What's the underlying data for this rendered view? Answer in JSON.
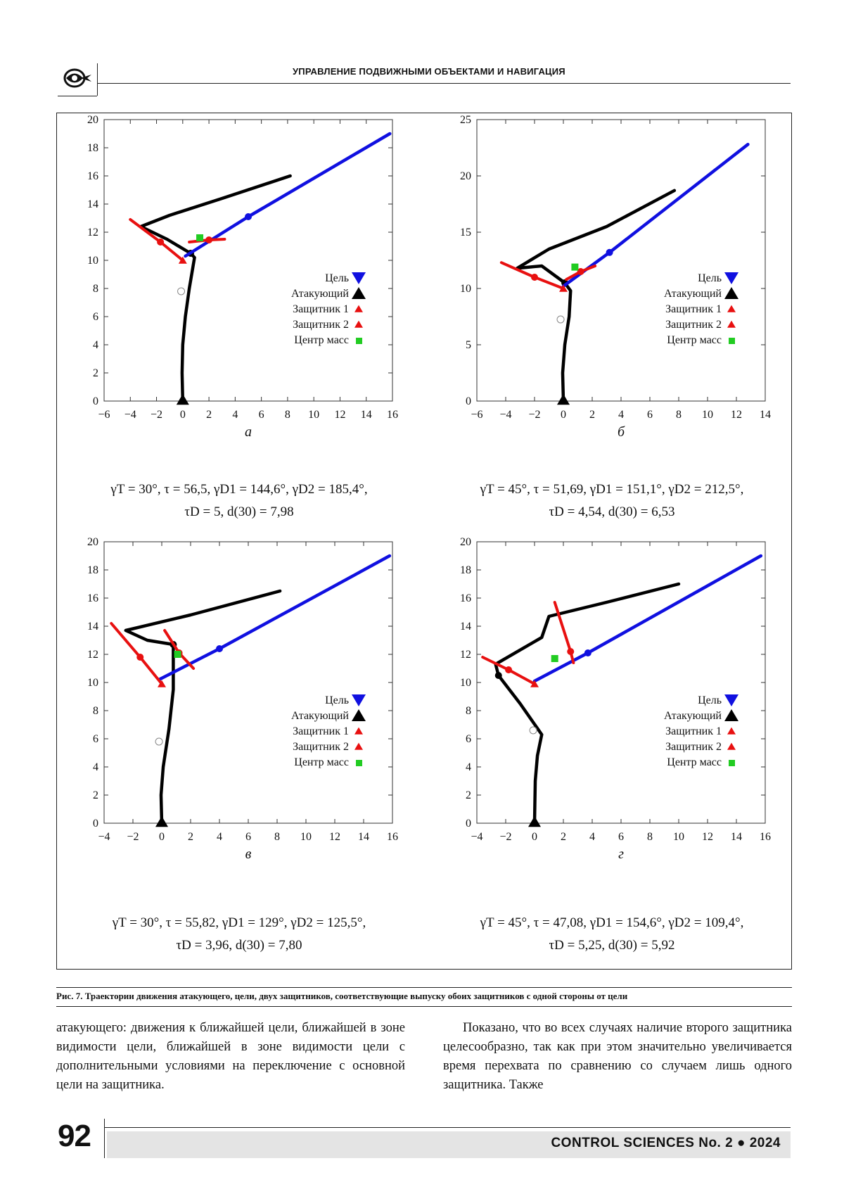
{
  "header": {
    "title": "УПРАВЛЕНИЕ ПОДВИЖНЫМИ ОБЪЕКТАМИ И НАВИГАЦИЯ"
  },
  "legend": {
    "target": "Цель",
    "attacker": "Атакующий",
    "defender1": "Защитник 1",
    "defender2": "Защитник 2",
    "center": "Центр масс"
  },
  "colors": {
    "target": "#1010e0",
    "attacker": "#000000",
    "defender": "#e81010",
    "center": "#22cc22"
  },
  "panels": [
    {
      "letter": "а",
      "params_line1": "γT = 30°,  τ = 56,5,  γD1 = 144,6°,  γD2 = 185,4°,",
      "params_line2": "τD = 5,  d(30) = 7,98"
    },
    {
      "letter": "б",
      "params_line1": "γT = 45°,  τ = 51,69,  γD1 = 151,1°,  γD2 = 212,5°,",
      "params_line2": "τD = 4,54,  d(30) = 6,53"
    },
    {
      "letter": "в",
      "params_line1": "γT = 30°,  τ = 55,82,  γD1 = 129°,  γD2 = 125,5°,",
      "params_line2": "τD = 3,96,  d(30) = 7,80"
    },
    {
      "letter": "г",
      "params_line1": "γT = 45°,  τ = 47,08,  γD1 = 154,6°,  γD2 = 109,4°,",
      "params_line2": "τD = 5,25,  d(30) = 5,92"
    }
  ],
  "chart_data": [
    {
      "type": "line",
      "xlim": [
        -6,
        16
      ],
      "ylim": [
        0,
        20
      ],
      "xticks": [
        -6,
        -4,
        -2,
        0,
        2,
        4,
        6,
        8,
        10,
        12,
        14,
        16
      ],
      "yticks": [
        0,
        2,
        4,
        6,
        8,
        10,
        12,
        14,
        16,
        18,
        20
      ],
      "legend_position": "lower-right",
      "series": [
        {
          "name": "Атакующий",
          "color": "#000000",
          "points": [
            [
              0,
              0
            ],
            [
              -0.05,
              2
            ],
            [
              0,
              4
            ],
            [
              0.2,
              6
            ],
            [
              0.5,
              8
            ],
            [
              0.9,
              10.2
            ],
            [
              0.6,
              10.5
            ],
            [
              -1.2,
              11.5
            ],
            [
              -3.2,
              12.4
            ],
            [
              -1,
              13.2
            ],
            [
              3,
              14.4
            ],
            [
              8.2,
              16
            ]
          ]
        },
        {
          "name": "Цель",
          "color": "#1010e0",
          "points": [
            [
              0.2,
              10.3
            ],
            [
              5,
              13.1
            ],
            [
              15.8,
              19
            ]
          ]
        },
        {
          "name": "Защитник 1",
          "color": "#e81010",
          "points": [
            [
              0,
              10
            ],
            [
              -1.7,
              11.3
            ],
            [
              -4,
              12.9
            ]
          ]
        },
        {
          "name": "Защитник 2",
          "color": "#e81010",
          "points": [
            [
              0.5,
              11.3
            ],
            [
              2,
              11.45
            ],
            [
              3.2,
              11.5
            ]
          ]
        }
      ],
      "center_of_mass": [
        1.3,
        11.6
      ]
    },
    {
      "type": "line",
      "xlim": [
        -6,
        14
      ],
      "ylim": [
        0,
        25
      ],
      "xticks": [
        -6,
        -4,
        -2,
        0,
        2,
        4,
        6,
        8,
        10,
        12,
        14
      ],
      "yticks": [
        0,
        5,
        10,
        15,
        20,
        25
      ],
      "legend_position": "lower-right",
      "series": [
        {
          "name": "Атакующий",
          "color": "#000000",
          "points": [
            [
              0,
              0
            ],
            [
              -0.05,
              2.5
            ],
            [
              0.1,
              5
            ],
            [
              0.4,
              7.5
            ],
            [
              0.5,
              9.8
            ],
            [
              0.1,
              10.5
            ],
            [
              -1.5,
              12
            ],
            [
              -3.2,
              11.8
            ],
            [
              -1,
              13.5
            ],
            [
              3,
              15.5
            ],
            [
              7.7,
              18.7
            ]
          ]
        },
        {
          "name": "Цель",
          "color": "#1010e0",
          "points": [
            [
              0,
              10.2
            ],
            [
              3.2,
              13.2
            ],
            [
              12.8,
              22.8
            ]
          ]
        },
        {
          "name": "Защитник 1",
          "color": "#e81010",
          "points": [
            [
              0,
              10
            ],
            [
              -2,
              11
            ],
            [
              -4.3,
              12.3
            ]
          ]
        },
        {
          "name": "Защитник 2",
          "color": "#e81010",
          "points": [
            [
              0.2,
              10.8
            ],
            [
              1.2,
              11.5
            ],
            [
              2.2,
              12
            ]
          ]
        }
      ],
      "center_of_mass": [
        0.8,
        11.9
      ]
    },
    {
      "type": "line",
      "xlim": [
        -4,
        16
      ],
      "ylim": [
        0,
        20
      ],
      "xticks": [
        -4,
        -2,
        0,
        2,
        4,
        6,
        8,
        10,
        12,
        14,
        16
      ],
      "yticks": [
        0,
        2,
        4,
        6,
        8,
        10,
        12,
        14,
        16,
        18,
        20
      ],
      "legend_position": "lower-right",
      "series": [
        {
          "name": "Атакующий",
          "color": "#000000",
          "points": [
            [
              0,
              0
            ],
            [
              -0.05,
              2
            ],
            [
              0.1,
              4
            ],
            [
              0.5,
              6.7
            ],
            [
              0.8,
              9.5
            ],
            [
              0.8,
              12.7
            ],
            [
              -1,
              13
            ],
            [
              -2.5,
              13.7
            ],
            [
              2,
              14.8
            ],
            [
              8.2,
              16.5
            ]
          ]
        },
        {
          "name": "Цель",
          "color": "#1010e0",
          "points": [
            [
              -0.2,
              10.2
            ],
            [
              4,
              12.4
            ],
            [
              15.8,
              19
            ]
          ]
        },
        {
          "name": "Защитник 1",
          "color": "#e81010",
          "points": [
            [
              0,
              9.9
            ],
            [
              -1.5,
              11.8
            ],
            [
              -3.5,
              14.2
            ]
          ]
        },
        {
          "name": "Защитник 2",
          "color": "#e81010",
          "points": [
            [
              0.2,
              13.7
            ],
            [
              1.2,
              12.1
            ],
            [
              2.2,
              11
            ]
          ]
        }
      ],
      "center_of_mass": [
        1.1,
        12.0
      ]
    },
    {
      "type": "line",
      "xlim": [
        -4,
        16
      ],
      "ylim": [
        0,
        20
      ],
      "xticks": [
        -4,
        -2,
        0,
        2,
        4,
        6,
        8,
        10,
        12,
        14,
        16
      ],
      "yticks": [
        0,
        2,
        4,
        6,
        8,
        10,
        12,
        14,
        16,
        18,
        20
      ],
      "legend_position": "lower-right",
      "series": [
        {
          "name": "Атакующий",
          "color": "#000000",
          "points": [
            [
              0,
              0
            ],
            [
              0.05,
              3
            ],
            [
              0.2,
              4.8
            ],
            [
              0.5,
              6.3
            ],
            [
              -1,
              8.5
            ],
            [
              -2.5,
              10.5
            ],
            [
              -2.7,
              11.3
            ],
            [
              0.5,
              13.2
            ],
            [
              1,
              14.7
            ],
            [
              5,
              15.7
            ],
            [
              10,
              17
            ]
          ]
        },
        {
          "name": "Цель",
          "color": "#1010e0",
          "points": [
            [
              0,
              10.1
            ],
            [
              3.7,
              12.1
            ],
            [
              15.7,
              19
            ]
          ]
        },
        {
          "name": "Защитник 1",
          "color": "#e81010",
          "points": [
            [
              0,
              9.9
            ],
            [
              -1.8,
              10.9
            ],
            [
              -3.6,
              11.8
            ]
          ]
        },
        {
          "name": "Защитник 2",
          "color": "#e81010",
          "points": [
            [
              1.4,
              15.7
            ],
            [
              2.5,
              12.2
            ],
            [
              2.7,
              11.4
            ]
          ]
        }
      ],
      "center_of_mass": [
        1.4,
        11.7
      ]
    }
  ],
  "caption": "Рис. 7. Траектории движения атакующего, цели, двух защитников, соответствующие выпуску обоих защитников с одной стороны от цели",
  "body": {
    "left": "атакующего: движения к ближайшей цели, ближайшей в зоне видимости цели, ближайшей в зоне видимости цели с дополнительными условиями на переключение с основной цели на защитника.",
    "right": "Показано, что во всех случаях наличие второго защитника целесообразно, так как при этом значительно увеличивается время перехвата по сравнению со случаем лишь одного защитника. Также"
  },
  "footer": {
    "page_number": "92",
    "journal": "CONTROL SCIENCES   No. 2 ● 2024"
  }
}
